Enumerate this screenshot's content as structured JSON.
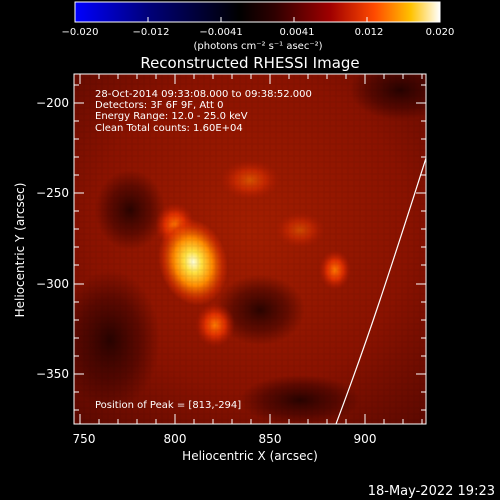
{
  "colorbar": {
    "tick_labels": [
      "−0.020",
      "−0.012",
      "−0.0041",
      "0.0041",
      "0.012",
      "0.020"
    ],
    "units_label": "(photons cm⁻² s⁻¹ asec⁻²)"
  },
  "image": {
    "title": "Reconstructed RHESSI Image",
    "annotations": [
      "28-Oct-2014 09:33:08.000 to 09:38:52.000",
      "Detectors: 3F 6F 9F, Att 0",
      "Energy Range: 12.0 - 25.0 keV",
      "Clean    Total counts: 1.60E+04"
    ],
    "peak_label": "Position of Peak = [813,-294]"
  },
  "axes": {
    "xlabel": "Heliocentric X (arcsec)",
    "ylabel": "Heliocentric Y (arcsec)",
    "x_tick_labels": [
      "750",
      "800",
      "850",
      "900"
    ],
    "y_tick_labels": [
      "−200",
      "−250",
      "−300",
      "−350"
    ]
  },
  "footer": {
    "timestamp": "18-May-2022 19:23"
  },
  "colors": {
    "background": "#000000",
    "foreground": "#ffffff",
    "colormap": [
      "#0000ff",
      "#000080",
      "#000000",
      "#400000",
      "#9a0000",
      "#ff4000",
      "#ffc000",
      "#ffffff"
    ]
  }
}
